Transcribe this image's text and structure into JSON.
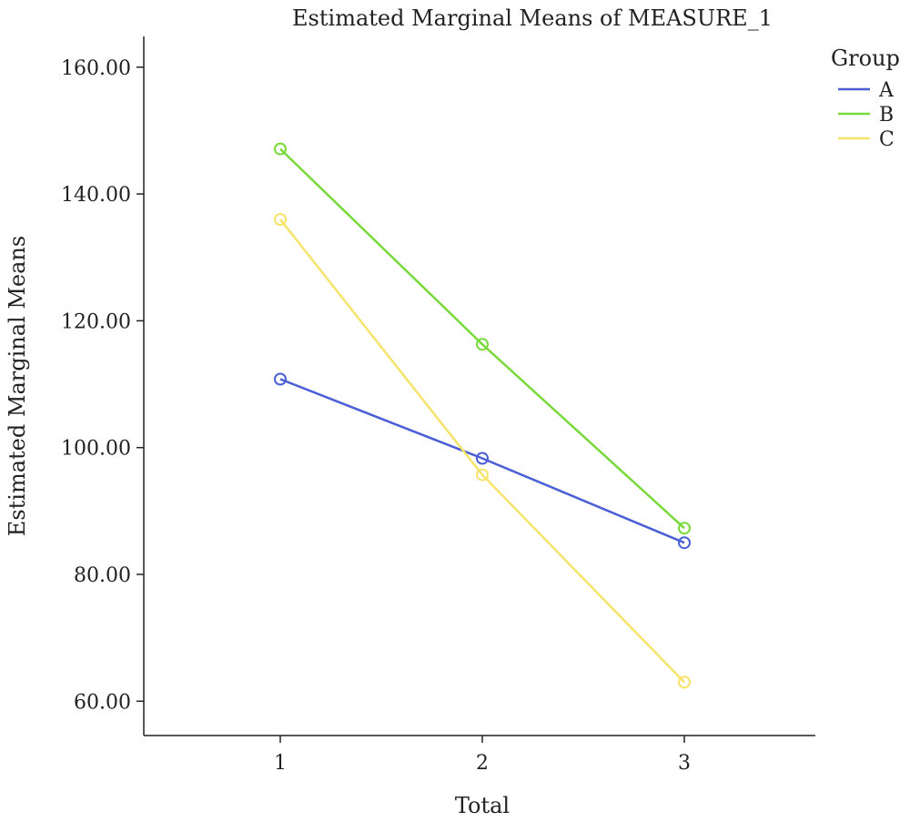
{
  "chart_data": {
    "type": "line",
    "title": "Estimated Marginal Means of MEASURE_1",
    "xlabel": "Total",
    "ylabel": "Estimated Marginal Means",
    "categories": [
      "1",
      "2",
      "3"
    ],
    "ylim": [
      55,
      165
    ],
    "yticks": [
      "60.00",
      "80.00",
      "100.00",
      "120.00",
      "140.00",
      "160.00"
    ],
    "grid": false,
    "legend": {
      "title": "Group",
      "placement": "top-right"
    },
    "series": [
      {
        "name": "A",
        "color": "#4a5fd6",
        "values": [
          110.8,
          98.3,
          85.0
        ]
      },
      {
        "name": "B",
        "color": "#77d93a",
        "values": [
          147.1,
          116.3,
          87.3
        ]
      },
      {
        "name": "C",
        "color": "#f5e36a",
        "values": [
          136.0,
          95.7,
          63.0
        ]
      }
    ]
  }
}
